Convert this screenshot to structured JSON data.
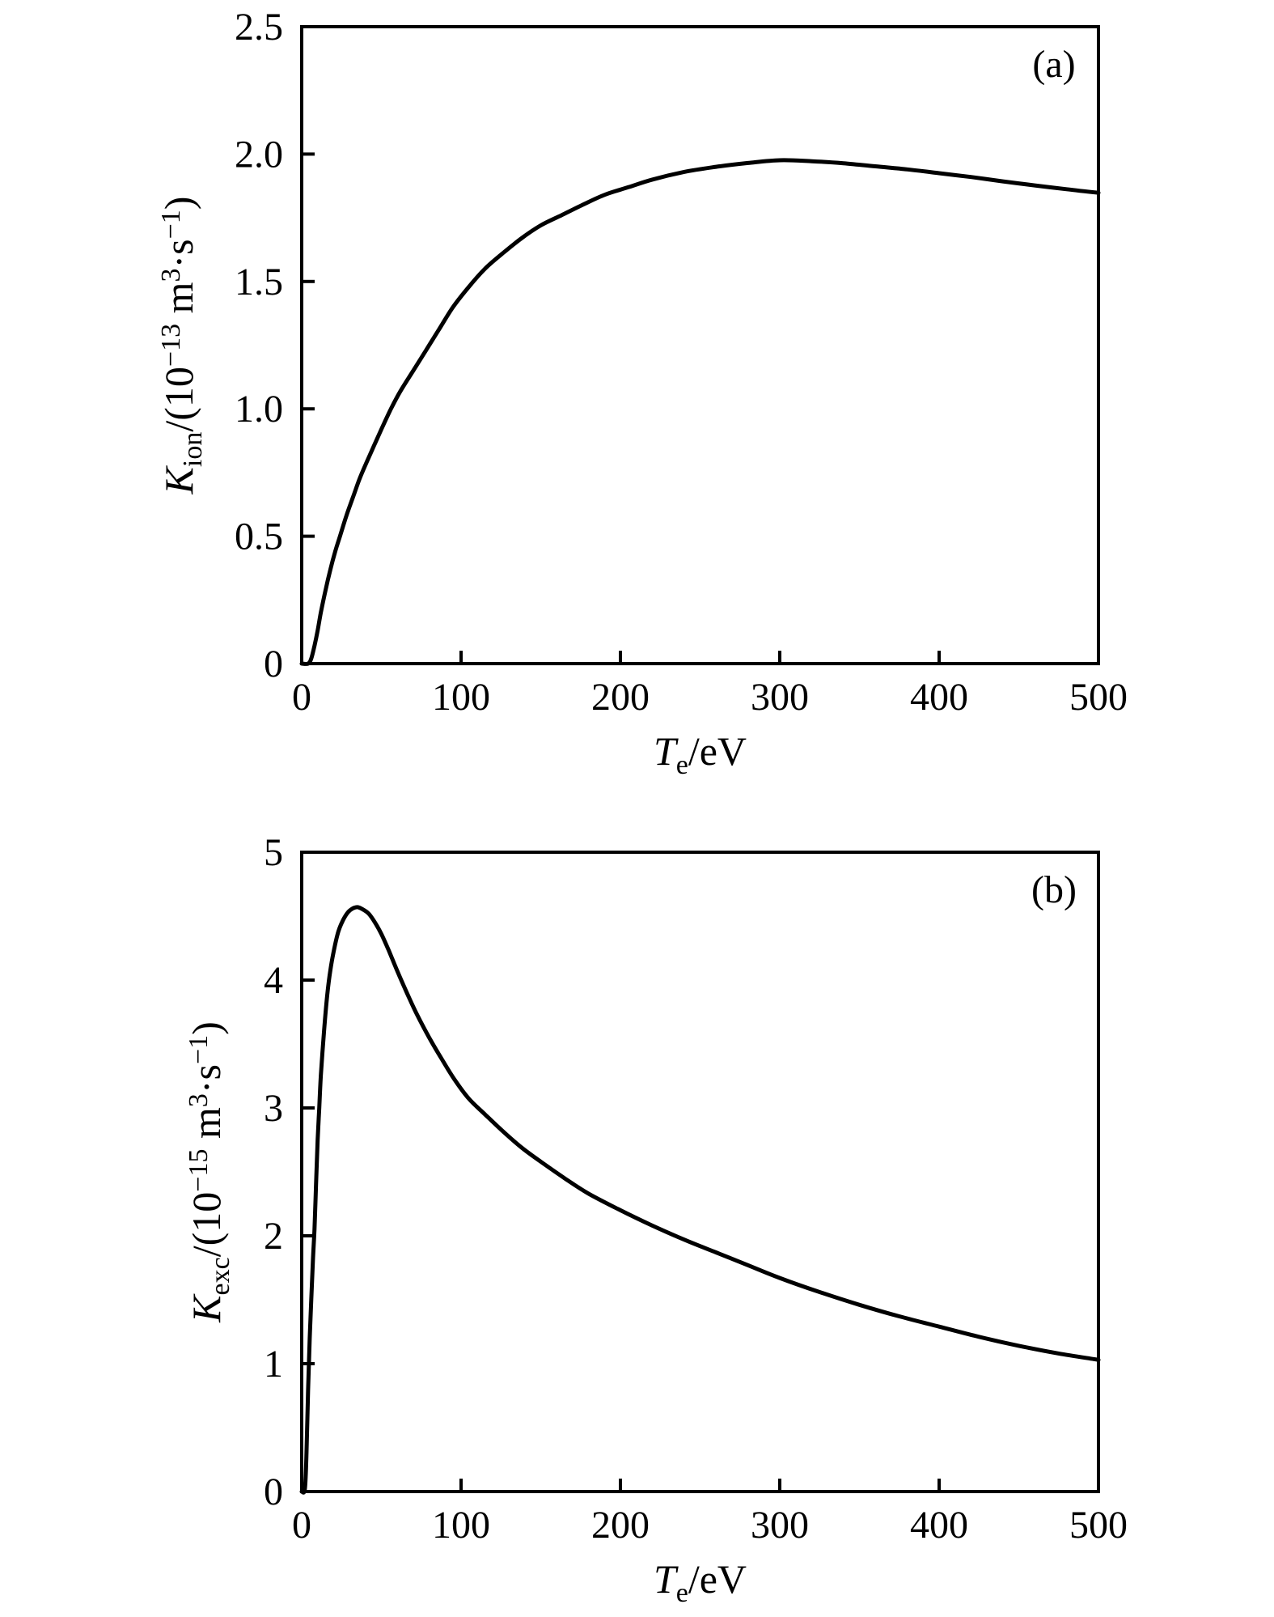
{
  "figure": {
    "background_color": "#ffffff",
    "ink_color": "#000000",
    "description": "Two stacked line plots of rate coefficients versus electron temperature"
  },
  "chart_data": [
    {
      "id": "a",
      "type": "line",
      "panel_label": "(a)",
      "xlabel_parts": [
        {
          "t": "T",
          "s": "i"
        },
        {
          "t": "e",
          "s": "sub"
        },
        {
          "t": "/eV",
          "s": "n"
        }
      ],
      "ylabel_parts": [
        {
          "t": "K",
          "s": "i"
        },
        {
          "t": "ion",
          "s": "sub"
        },
        {
          "t": "/(10",
          "s": "n"
        },
        {
          "t": "−13",
          "s": "sup"
        },
        {
          "t": " m",
          "s": "n"
        },
        {
          "t": "3",
          "s": "sup"
        },
        {
          "t": "·s",
          "s": "n"
        },
        {
          "t": "−1",
          "s": "sup"
        },
        {
          "t": ")",
          "s": "n"
        }
      ],
      "xlim": [
        0,
        500
      ],
      "ylim": [
        0,
        2.5
      ],
      "xticks": [
        0,
        100,
        200,
        300,
        400,
        500
      ],
      "xtick_labels": [
        "0",
        "100",
        "200",
        "300",
        "400",
        "500"
      ],
      "yticks": [
        0,
        0.5,
        1.0,
        1.5,
        2.0,
        2.5
      ],
      "ytick_labels": [
        "0",
        "0.5",
        "1.0",
        "1.5",
        "2.0",
        "2.5"
      ],
      "grid": false,
      "legend": "none",
      "series": [
        {
          "name": "K-ion",
          "color": "#000000",
          "x": [
            0,
            4,
            6,
            8,
            10,
            12,
            15,
            18,
            21,
            24,
            28,
            32,
            36,
            40,
            45,
            50,
            56,
            62,
            70,
            78,
            86,
            95,
            105,
            115,
            126,
            138,
            150,
            163,
            176,
            190,
            205,
            220,
            240,
            260,
            280,
            300,
            320,
            340,
            360,
            380,
            400,
            420,
            440,
            460,
            480,
            500
          ],
          "y": [
            0,
            0,
            0.02,
            0.07,
            0.13,
            0.2,
            0.29,
            0.37,
            0.44,
            0.5,
            0.58,
            0.65,
            0.72,
            0.78,
            0.85,
            0.92,
            1.0,
            1.07,
            1.15,
            1.23,
            1.31,
            1.4,
            1.48,
            1.55,
            1.61,
            1.67,
            1.72,
            1.76,
            1.8,
            1.84,
            1.87,
            1.9,
            1.93,
            1.95,
            1.965,
            1.976,
            1.972,
            1.964,
            1.952,
            1.94,
            1.925,
            1.91,
            1.893,
            1.877,
            1.862,
            1.848
          ]
        }
      ]
    },
    {
      "id": "b",
      "type": "line",
      "panel_label": "(b)",
      "xlabel_parts": [
        {
          "t": "T",
          "s": "i"
        },
        {
          "t": "e",
          "s": "sub"
        },
        {
          "t": "/eV",
          "s": "n"
        }
      ],
      "ylabel_parts": [
        {
          "t": "K",
          "s": "i"
        },
        {
          "t": "exc",
          "s": "sub"
        },
        {
          "t": "/(10",
          "s": "n"
        },
        {
          "t": "−15",
          "s": "sup"
        },
        {
          "t": " m",
          "s": "n"
        },
        {
          "t": "3",
          "s": "sup"
        },
        {
          "t": "·s",
          "s": "n"
        },
        {
          "t": "−1",
          "s": "sup"
        },
        {
          "t": ")",
          "s": "n"
        }
      ],
      "xlim": [
        0,
        500
      ],
      "ylim": [
        0,
        5
      ],
      "xticks": [
        0,
        100,
        200,
        300,
        400,
        500
      ],
      "xtick_labels": [
        "0",
        "100",
        "200",
        "300",
        "400",
        "500"
      ],
      "yticks": [
        0,
        1,
        2,
        3,
        4,
        5
      ],
      "ytick_labels": [
        "0",
        "1",
        "2",
        "3",
        "4",
        "5"
      ],
      "grid": false,
      "legend": "none",
      "series": [
        {
          "name": "K-exc",
          "color": "#000000",
          "x": [
            0,
            2,
            3,
            4,
            5,
            6,
            7,
            8,
            9,
            10,
            11,
            12,
            14,
            16,
            18,
            20,
            23,
            26,
            29,
            32,
            35,
            38,
            42,
            46,
            50,
            55,
            60,
            66,
            72,
            80,
            88,
            96,
            105,
            115,
            126,
            138,
            150,
            165,
            180,
            200,
            220,
            240,
            260,
            280,
            300,
            325,
            350,
            375,
            400,
            425,
            450,
            475,
            500
          ],
          "y": [
            0,
            0.02,
            0.3,
            0.8,
            1.2,
            1.5,
            1.8,
            2.05,
            2.4,
            2.75,
            3.0,
            3.25,
            3.6,
            3.88,
            4.08,
            4.22,
            4.38,
            4.47,
            4.53,
            4.56,
            4.57,
            4.555,
            4.52,
            4.45,
            4.36,
            4.22,
            4.07,
            3.9,
            3.74,
            3.55,
            3.38,
            3.22,
            3.07,
            2.95,
            2.82,
            2.69,
            2.58,
            2.45,
            2.33,
            2.2,
            2.08,
            1.97,
            1.87,
            1.77,
            1.67,
            1.56,
            1.46,
            1.37,
            1.29,
            1.21,
            1.14,
            1.08,
            1.03
          ]
        }
      ]
    }
  ]
}
